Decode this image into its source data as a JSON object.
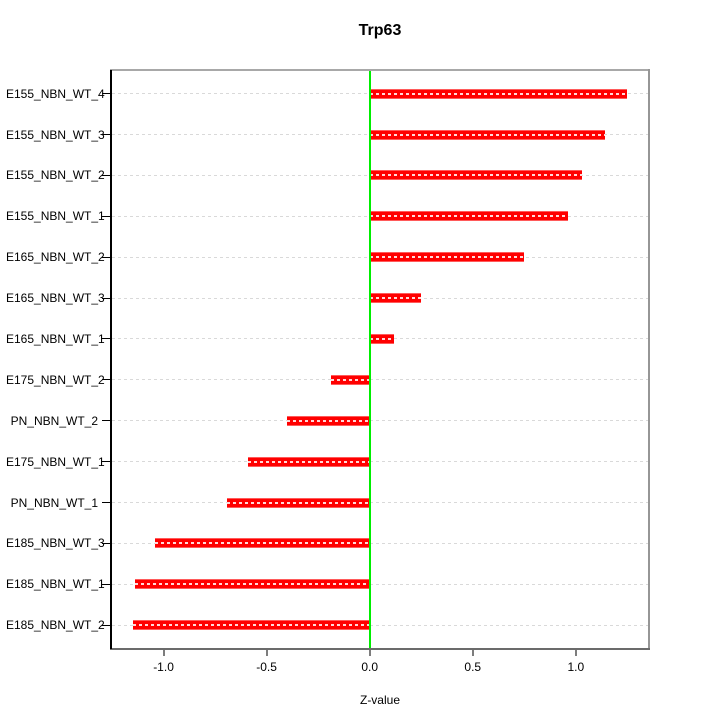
{
  "title": "Trp63",
  "chart_data": {
    "type": "bar",
    "orientation": "horizontal",
    "title": "Trp63",
    "xlabel": "Z-value",
    "ylabel": "",
    "categories": [
      "E155_NBN_WT_4",
      "E155_NBN_WT_3",
      "E155_NBN_WT_2",
      "E155_NBN_WT_1",
      "E165_NBN_WT_2",
      "E165_NBN_WT_3",
      "E165_NBN_WT_1",
      "E175_NBN_WT_2",
      "PN_NBN_WT_2",
      "E175_NBN_WT_1",
      "PN_NBN_WT_1",
      "E185_NBN_WT_3",
      "E185_NBN_WT_1",
      "E185_NBN_WT_2"
    ],
    "values": [
      1.25,
      1.14,
      1.03,
      0.96,
      0.75,
      0.25,
      0.12,
      -0.19,
      -0.4,
      -0.59,
      -0.69,
      -1.04,
      -1.14,
      -1.15
    ],
    "xlim": [
      -1.25,
      1.35
    ],
    "x_ticks": [
      -1.0,
      -0.5,
      0.0,
      0.5,
      1.0
    ],
    "x_tick_labels": [
      "-1.0",
      "-0.5",
      "0.0",
      "0.5",
      "1.0"
    ],
    "grid": true,
    "legend": "none",
    "colors": {
      "bar": "#ff0000",
      "zero_line": "#00ee00",
      "gridline": "#d9d9d9",
      "axis_left": "#000000",
      "box": "#969696"
    }
  }
}
